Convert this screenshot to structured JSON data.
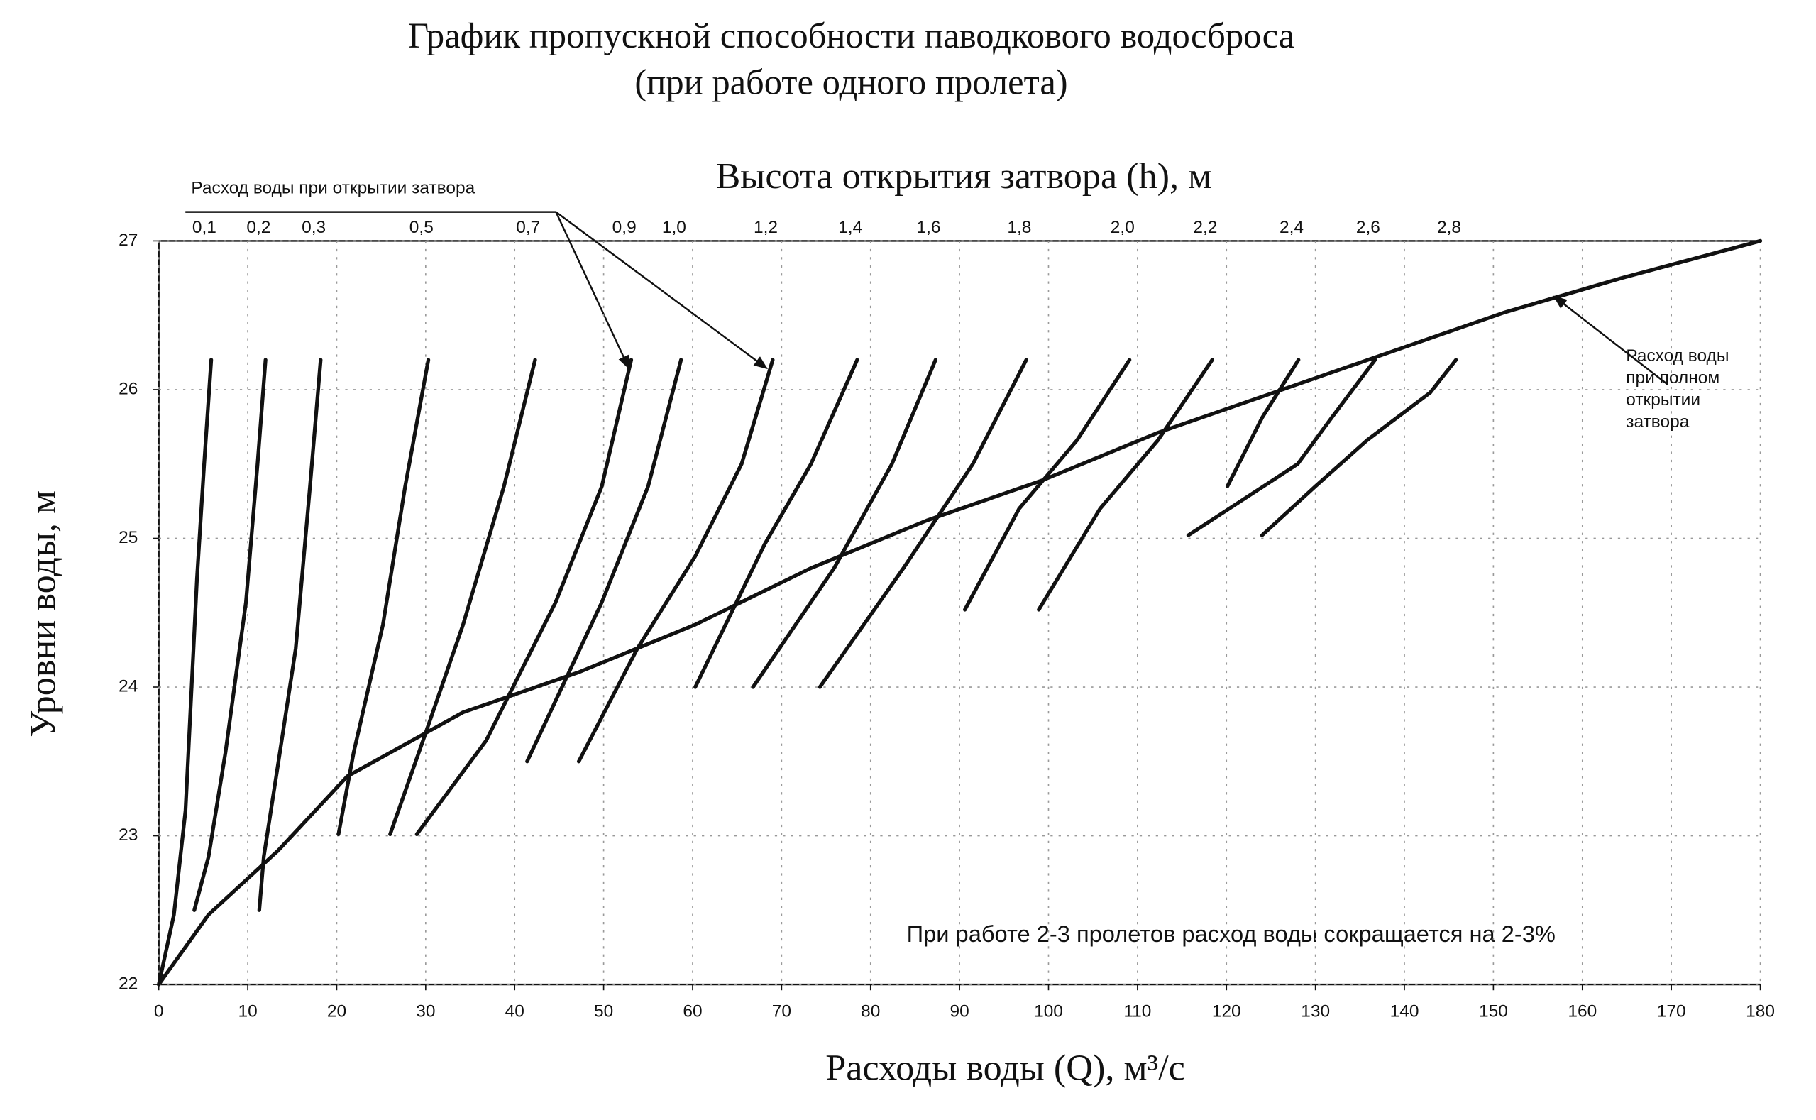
{
  "chart_data": {
    "type": "line",
    "title": "График пропускной способности паводкового водосброса",
    "subtitle": "(при работе одного пролета)",
    "top_axis_title": "Высота открытия затвора (h), м",
    "top_annotation": "Расход воды при открытии затвора",
    "note": "При работе 2-3 пролетов расход воды сокращается на 2-3%",
    "x_label": "Расходы  воды (Q), м³/с",
    "y_label": "Уровни воды, м",
    "xlim": [
      0,
      180
    ],
    "xticks": [
      0,
      10,
      20,
      30,
      40,
      50,
      60,
      70,
      80,
      90,
      100,
      110,
      120,
      130,
      140,
      150,
      160,
      170,
      180
    ],
    "ylim": [
      22,
      27
    ],
    "yticks": [
      22,
      23,
      24,
      25,
      26,
      27
    ],
    "grid": true,
    "series": [
      {
        "name": "0,1",
        "color": "#111",
        "x": [
          0,
          1.7,
          3.0,
          4.3,
          5.1,
          5.9
        ],
        "values": [
          22,
          22.47,
          23.17,
          24.73,
          25.5,
          26.2
        ]
      },
      {
        "name": "0,2",
        "color": "#111",
        "x": [
          4.0,
          5.6,
          7.5,
          9.8,
          11.1,
          12.0
        ],
        "values": [
          22.5,
          22.86,
          23.56,
          24.57,
          25.5,
          26.2
        ]
      },
      {
        "name": "0,3",
        "color": "#111",
        "x": [
          11.3,
          11.8,
          13.4,
          15.4,
          17.0,
          18.2
        ],
        "values": [
          22.5,
          22.86,
          23.48,
          24.26,
          25.35,
          26.2
        ]
      },
      {
        "name": "0,5",
        "color": "#111",
        "x": [
          20.2,
          21.9,
          25.2,
          27.7,
          30.3
        ],
        "values": [
          23.01,
          23.56,
          24.42,
          25.35,
          26.2
        ]
      },
      {
        "name": "0,7",
        "color": "#111",
        "x": [
          26.0,
          29.7,
          34.2,
          38.8,
          42.3
        ],
        "values": [
          23.01,
          23.64,
          24.42,
          25.35,
          26.2
        ]
      },
      {
        "name": "0,9",
        "color": "#111",
        "x": [
          29.0,
          36.8,
          44.6,
          49.8,
          53.1
        ],
        "values": [
          23.01,
          23.64,
          24.57,
          25.35,
          26.2
        ]
      },
      {
        "name": "1,0",
        "color": "#111",
        "x": [
          41.4,
          49.8,
          55.0,
          58.7
        ],
        "values": [
          23.5,
          24.57,
          25.35,
          26.2
        ]
      },
      {
        "name": "1,2",
        "color": "#111",
        "x": [
          47.2,
          53.8,
          60.3,
          65.5,
          69.0
        ],
        "values": [
          23.5,
          24.26,
          24.88,
          25.5,
          26.2
        ]
      },
      {
        "name": "1,4",
        "color": "#111",
        "x": [
          60.3,
          68.1,
          73.3,
          78.5
        ],
        "values": [
          24.0,
          24.96,
          25.5,
          26.2
        ]
      },
      {
        "name": "1,6",
        "color": "#111",
        "x": [
          66.8,
          75.9,
          82.4,
          87.3
        ],
        "values": [
          24.0,
          24.8,
          25.5,
          26.2
        ]
      },
      {
        "name": "1,8",
        "color": "#111",
        "x": [
          74.3,
          83.7,
          91.5,
          97.5
        ],
        "values": [
          24.0,
          24.8,
          25.5,
          26.2
        ]
      },
      {
        "name": "2,0",
        "color": "#111",
        "x": [
          90.6,
          96.7,
          103.2,
          109.1
        ],
        "values": [
          24.52,
          25.2,
          25.66,
          26.2
        ]
      },
      {
        "name": "2,2",
        "color": "#111",
        "x": [
          98.9,
          105.8,
          112.3,
          118.4
        ],
        "values": [
          24.52,
          25.2,
          25.66,
          26.2
        ]
      },
      {
        "name": "2,4",
        "color": "#111",
        "x": [
          120.1,
          124.0,
          128.1
        ],
        "values": [
          25.35,
          25.81,
          26.2
        ]
      },
      {
        "name": "2,6",
        "color": "#111",
        "x": [
          115.7,
          128.0,
          131.8,
          136.7
        ],
        "values": [
          25.02,
          25.5,
          25.81,
          26.2
        ]
      },
      {
        "name": "2,8",
        "color": "#111",
        "x": [
          124.0,
          130.0,
          135.8,
          142.9,
          145.8
        ],
        "values": [
          25.02,
          25.35,
          25.66,
          25.98,
          26.2
        ]
      },
      {
        "name": "Расход воды при полном открытии затвора",
        "color": "#111",
        "x": [
          0,
          5.6,
          13.4,
          21.2,
          34.2,
          47.2,
          60.3,
          73.3,
          86.3,
          99.3,
          112.3,
          125.3,
          138.3,
          151.3,
          164.4,
          180
        ],
        "values": [
          22,
          22.47,
          22.9,
          23.4,
          23.83,
          24.1,
          24.42,
          24.8,
          25.12,
          25.39,
          25.71,
          25.98,
          26.25,
          26.52,
          26.75,
          27.0
        ]
      }
    ]
  }
}
